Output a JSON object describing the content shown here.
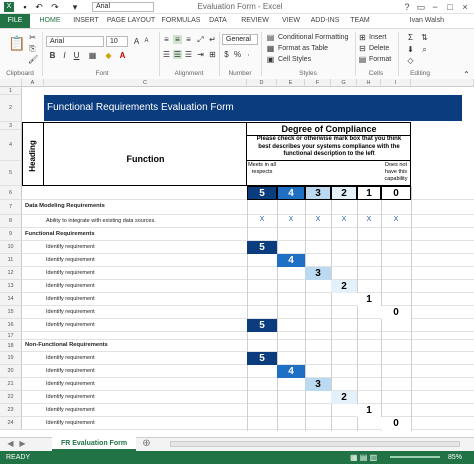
{
  "window": {
    "title": "Evaluation Form - Excel",
    "user": "Ivan Walsh",
    "help": "?",
    "restore": "▭",
    "minimize": "−",
    "maximize": "□",
    "close": "×"
  },
  "quick_access": {
    "font": "Arial"
  },
  "tabs": [
    "FILE",
    "HOME",
    "INSERT",
    "PAGE LAYOUT",
    "FORMULAS",
    "DATA",
    "REVIEW",
    "VIEW",
    "ADD-INS",
    "TEAM"
  ],
  "ribbon": {
    "font_name": "Arial",
    "font_size": "10",
    "number_format": "General",
    "conditional_formatting": "Conditional Formatting",
    "format_as_table": "Format as Table",
    "cell_styles": "Cell Styles",
    "insert": "Insert",
    "delete": "Delete",
    "format": "Format",
    "groups": [
      "Clipboard",
      "Font",
      "Alignment",
      "Number",
      "Styles",
      "Cells",
      "Editing"
    ]
  },
  "columns": [
    "A",
    "B",
    "C",
    "D",
    "E",
    "F",
    "G",
    "H",
    "I"
  ],
  "rows": [
    "1",
    "2",
    "3",
    "4",
    "5",
    "6",
    "7",
    "8",
    "9",
    "10",
    "11",
    "12",
    "13",
    "14",
    "15",
    "16",
    "17",
    "18",
    "19",
    "20",
    "21",
    "22",
    "23",
    "24"
  ],
  "form": {
    "title": "Functional Requirements Evaluation Form",
    "heading_label": "Heading",
    "function_label": "Function",
    "degree_title": "Degree of Compliance",
    "degree_desc": "Please check or otherwise mark box that you think best describes your systems compliance with the functional description to the left",
    "meets_all": "Meets in all respects",
    "not_capable": "Does not have this capability",
    "scale": [
      "5",
      "4",
      "3",
      "2",
      "1",
      "0"
    ],
    "scale_colors": [
      "#0b3c7d",
      "#1f6fc4",
      "#bcd9f2",
      "#e4f0fa",
      "#ffffff",
      "#ffffff"
    ],
    "sections": [
      {
        "title": "Data Modeling Requirements",
        "items": [
          {
            "label": "Ability to integrate with existing data sources.",
            "mark": "X"
          }
        ]
      },
      {
        "title": "Functional Requirements",
        "items": [
          "Identify requirement",
          "Identify requirement",
          "Identify requirement",
          "Identify requirement",
          "Identify requirement",
          "Identify requirement",
          "Identify requirement"
        ]
      },
      {
        "title": "Non-Functional Requirements",
        "items": [
          "Identify requirement",
          "Identify requirement",
          "Identify requirement",
          "Identify requirement",
          "Identify requirement",
          "Identify requirement"
        ]
      }
    ],
    "ratings_fn": [
      "5",
      "4",
      "3",
      "2",
      "1",
      "0",
      "5"
    ],
    "ratings_nfn": [
      "5",
      "4",
      "3",
      "2",
      "1",
      "0"
    ]
  },
  "sheet_tab": "FR Evaluation Form",
  "status": {
    "ready": "READY",
    "zoom": "85%"
  }
}
